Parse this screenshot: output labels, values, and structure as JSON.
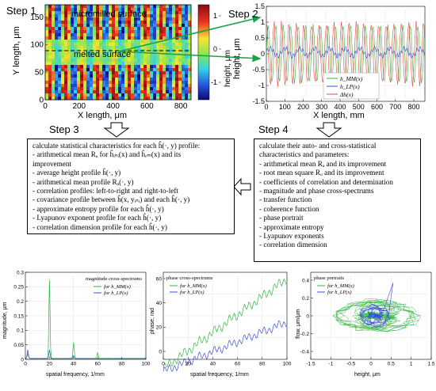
{
  "steps": {
    "step1_label": "Step 1",
    "step2_label": "Step 2",
    "step3_label": "Step 3",
    "step4_label": "Step 4"
  },
  "heatmap": {
    "label_top": "micromilled surface",
    "label_mid": "melted surface",
    "xlabel": "X length, μm",
    "ylabel": "Y length, μm",
    "colorbar_label": "height, μm",
    "x_ticks": [
      "0",
      "200",
      "400",
      "600",
      "800"
    ],
    "y_ticks": [
      "0",
      "50",
      "100",
      "150"
    ],
    "colorbar_ticks": [
      "1",
      "0",
      "-1"
    ],
    "colors": {
      "high": "#b4141e",
      "mid": "#f0e632",
      "low": "#1e32c8"
    }
  },
  "profiles": {
    "xlabel": "X length, mm",
    "ylabel": "height, μm",
    "x_ticks": [
      "0",
      "100",
      "200",
      "300",
      "400",
      "500",
      "600",
      "700",
      "800"
    ],
    "y_ticks": [
      "1.5",
      "1",
      "0.5",
      "0",
      "-0.5",
      "-1",
      "-1.5"
    ],
    "legend": [
      "h_MM(x)",
      "h_LP(x)",
      "Δh(x)"
    ],
    "colors": [
      "#2db83d",
      "#3a4fd8",
      "#e8464b"
    ]
  },
  "box_step3": {
    "lines": [
      "calculate statistical characteristics for each ĥ(·, y) profile:",
      "- arithmetical mean Rₐ for  ĥᵢₙᵢ(x) and ĥᵣₘ(x) and its",
      "  improvement",
      "- average height profile ĥ(·, y)",
      "- arithmetical mean profile Rₐ(·, y)",
      "- correlation profiles: left-to-right and right-to-left",
      "- covariance profile between ĥ(x, yᵢₙᵢ) and each ĥ(·, y)",
      "- approximate entropy profile for each ĥ(·, y)",
      "- Lyapunov exponent profile for each ĥ(·, y)",
      "- correlation dimension profile for each ĥ(·, y)"
    ]
  },
  "box_step4": {
    "lines": [
      "calculate their auto- and cross-statistical",
      "characteristics and parameters:",
      "- arithmetical mean Rₐ and its improvement",
      "- root mean square Rₒ and its improvement",
      "- coefficients of correlation and determination",
      "- magnitude and phase cross-spectrums",
      "- transfer function",
      "- coherence function",
      "- phase portrait",
      "- approximate entropy",
      "- Lyapunov exponents",
      "- correlation dimension"
    ]
  },
  "magnitude_plot": {
    "title": "magnitude cross-spectrums",
    "xlabel": "spatial frequency, 1/mm",
    "ylabel": "magnitude, μm",
    "x_ticks": [
      "0",
      "20",
      "40",
      "60",
      "80",
      "100"
    ],
    "y_ticks": [
      "0.3",
      "0.25",
      "0.2",
      "0.15",
      "0.1",
      "0.05",
      "0"
    ],
    "legend": [
      "for h_MM(x)",
      "for h_LP(x)"
    ],
    "colors": [
      "#2db83d",
      "#3a4fd8"
    ]
  },
  "phase_plot": {
    "title": "phase cross-spectrums",
    "xlabel": "spatial frequency, 1/mm",
    "ylabel": "phase, rad",
    "x_ticks": [
      "0",
      "20",
      "40",
      "60",
      "80",
      "100"
    ],
    "y_ticks": [
      "60",
      "40",
      "20",
      "0"
    ],
    "legend": [
      "for h_MM(x)",
      "for h_LP(x)"
    ],
    "colors": [
      "#2db83d",
      "#3a4fd8"
    ]
  },
  "portrait_plot": {
    "title": "phase portraits",
    "xlabel": "height, μm",
    "ylabel": "flow, μm/μm",
    "x_ticks": [
      "-1.5",
      "-1",
      "-0.5",
      "0",
      "0.5",
      "1",
      "1.5"
    ],
    "y_ticks": [
      "0.4",
      "0.2",
      "0",
      "-0.2",
      "-0.4"
    ],
    "legend": [
      "for h_MM(x)",
      "for h_LP(x)"
    ],
    "colors": [
      "#2db83d",
      "#3a4fd8"
    ]
  }
}
